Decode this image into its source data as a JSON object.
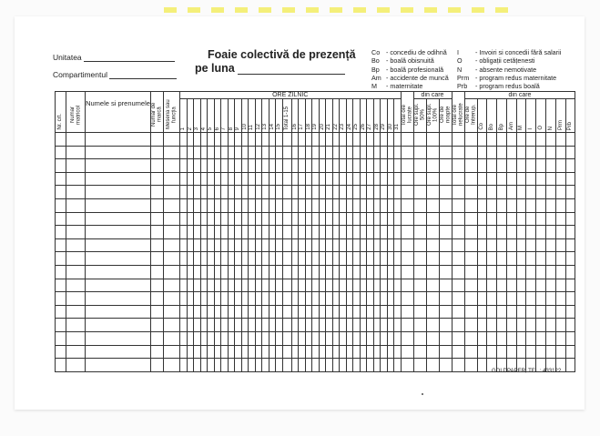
{
  "header": {
    "unitate_label": "Unitatea",
    "compartiment_label": "Compartimentul",
    "title": "Foaie colectivă de prezență",
    "month_label": "pe luna"
  },
  "legend": [
    {
      "code": "Co",
      "text": "- concediu de odihnă"
    },
    {
      "code": "Bo",
      "text": "- boală obisnuită"
    },
    {
      "code": "Bp",
      "text": "- boală profesională"
    },
    {
      "code": "Am",
      "text": "- accidente de muncă"
    },
    {
      "code": "M",
      "text": "- maternitate"
    },
    {
      "code": "I",
      "text": "- Invoiri si concedii fără salarii"
    },
    {
      "code": "O",
      "text": "- obligații cetățenesti"
    },
    {
      "code": "N",
      "text": "- absente nemotivate"
    },
    {
      "code": "Prm",
      "text": "- program redus maternitate"
    },
    {
      "code": "Prb",
      "text": "- program redus boală"
    }
  ],
  "table": {
    "group_ore_zilnic": "ORE ZILNIC",
    "group_din_care_1": "din care",
    "group_din_care_2": "din care",
    "col_nr_crt": "Nr. crt.",
    "col_nr_matricol": "Număr matricol",
    "col_nume": "Numele si prenumele",
    "col_marca": "Număr de marcă",
    "col_meseria": "Meseria sau funcția",
    "days_1_15": [
      "1",
      "2",
      "3",
      "4",
      "5",
      "6",
      "7",
      "8",
      "9",
      "10",
      "11",
      "12",
      "13",
      "14",
      "15"
    ],
    "col_total_1_15": "Total 1-15",
    "days_16_31": [
      "16",
      "17",
      "18",
      "19",
      "20",
      "21",
      "22",
      "23",
      "24",
      "25",
      "26",
      "27",
      "28",
      "29",
      "30",
      "31"
    ],
    "col_total_lucrate": "Total ore lucrate",
    "sub_lucrate": [
      "Ore supl. 50%",
      "Ore supl. 100%",
      "Ore de noapte"
    ],
    "col_total_nelucrate": "Total ore nelucrate",
    "sub_nelucrate": [
      "Ore de întrerup.",
      "Co",
      "Bo",
      "Bp",
      "Am",
      "M",
      "I",
      "O",
      "N",
      "Prm",
      "Prb"
    ],
    "row_count": 18
  },
  "footer": "GOLDPAPER, TEL.: 433122"
}
